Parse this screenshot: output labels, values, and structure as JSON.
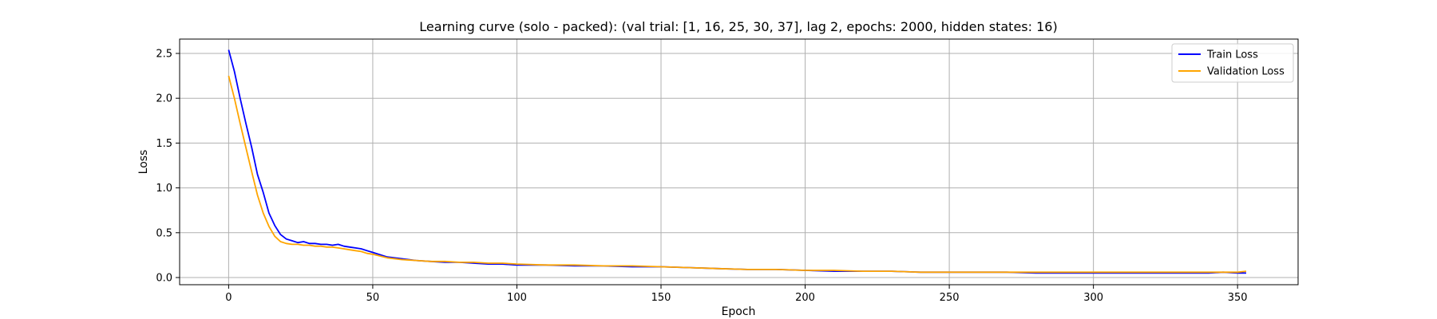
{
  "chart_data": {
    "type": "line",
    "title": "Learning curve (solo - packed): (val trial: [1, 16, 25, 30, 37], lag 2, epochs: 2000, hidden states: 16)",
    "xlabel": "Epoch",
    "ylabel": "Loss",
    "xlim": [
      -17,
      371
    ],
    "ylim": [
      -0.08,
      2.66
    ],
    "xticks": [
      0,
      50,
      100,
      150,
      200,
      250,
      300,
      350
    ],
    "yticks": [
      0.0,
      0.5,
      1.0,
      1.5,
      2.0,
      2.5
    ],
    "xtick_labels": [
      "0",
      "50",
      "100",
      "150",
      "200",
      "250",
      "300",
      "350"
    ],
    "ytick_labels": [
      "0.0",
      "0.5",
      "1.0",
      "1.5",
      "2.0",
      "2.5"
    ],
    "grid": true,
    "legend_position": "top-right",
    "series": [
      {
        "name": "Train Loss",
        "color": "#0000ff",
        "points": [
          [
            0,
            2.54
          ],
          [
            2,
            2.3
          ],
          [
            4,
            2.0
          ],
          [
            6,
            1.72
          ],
          [
            8,
            1.45
          ],
          [
            10,
            1.15
          ],
          [
            12,
            0.95
          ],
          [
            14,
            0.72
          ],
          [
            16,
            0.58
          ],
          [
            18,
            0.48
          ],
          [
            20,
            0.43
          ],
          [
            22,
            0.41
          ],
          [
            24,
            0.39
          ],
          [
            26,
            0.4
          ],
          [
            28,
            0.38
          ],
          [
            30,
            0.38
          ],
          [
            32,
            0.37
          ],
          [
            34,
            0.37
          ],
          [
            36,
            0.36
          ],
          [
            38,
            0.37
          ],
          [
            40,
            0.35
          ],
          [
            42,
            0.34
          ],
          [
            44,
            0.33
          ],
          [
            46,
            0.32
          ],
          [
            48,
            0.3
          ],
          [
            50,
            0.28
          ],
          [
            55,
            0.23
          ],
          [
            60,
            0.21
          ],
          [
            65,
            0.19
          ],
          [
            70,
            0.18
          ],
          [
            75,
            0.17
          ],
          [
            80,
            0.17
          ],
          [
            85,
            0.16
          ],
          [
            90,
            0.15
          ],
          [
            95,
            0.15
          ],
          [
            100,
            0.14
          ],
          [
            110,
            0.14
          ],
          [
            120,
            0.13
          ],
          [
            130,
            0.13
          ],
          [
            140,
            0.12
          ],
          [
            150,
            0.12
          ],
          [
            160,
            0.11
          ],
          [
            170,
            0.1
          ],
          [
            180,
            0.09
          ],
          [
            190,
            0.09
          ],
          [
            200,
            0.08
          ],
          [
            210,
            0.07
          ],
          [
            220,
            0.07
          ],
          [
            230,
            0.07
          ],
          [
            240,
            0.06
          ],
          [
            250,
            0.06
          ],
          [
            260,
            0.06
          ],
          [
            270,
            0.06
          ],
          [
            280,
            0.05
          ],
          [
            290,
            0.05
          ],
          [
            300,
            0.05
          ],
          [
            310,
            0.05
          ],
          [
            320,
            0.05
          ],
          [
            330,
            0.05
          ],
          [
            340,
            0.05
          ],
          [
            345,
            0.06
          ],
          [
            350,
            0.05
          ],
          [
            353,
            0.05
          ]
        ]
      },
      {
        "name": "Validation Loss",
        "color": "#ffa500",
        "points": [
          [
            0,
            2.25
          ],
          [
            2,
            2.0
          ],
          [
            4,
            1.72
          ],
          [
            6,
            1.45
          ],
          [
            8,
            1.18
          ],
          [
            10,
            0.92
          ],
          [
            12,
            0.72
          ],
          [
            14,
            0.57
          ],
          [
            16,
            0.46
          ],
          [
            18,
            0.4
          ],
          [
            20,
            0.38
          ],
          [
            22,
            0.37
          ],
          [
            24,
            0.37
          ],
          [
            26,
            0.36
          ],
          [
            28,
            0.36
          ],
          [
            30,
            0.35
          ],
          [
            32,
            0.35
          ],
          [
            34,
            0.34
          ],
          [
            36,
            0.34
          ],
          [
            38,
            0.33
          ],
          [
            40,
            0.32
          ],
          [
            42,
            0.31
          ],
          [
            44,
            0.3
          ],
          [
            46,
            0.29
          ],
          [
            48,
            0.27
          ],
          [
            50,
            0.26
          ],
          [
            55,
            0.22
          ],
          [
            60,
            0.2
          ],
          [
            65,
            0.19
          ],
          [
            70,
            0.18
          ],
          [
            75,
            0.18
          ],
          [
            80,
            0.17
          ],
          [
            85,
            0.17
          ],
          [
            90,
            0.16
          ],
          [
            95,
            0.16
          ],
          [
            100,
            0.15
          ],
          [
            110,
            0.14
          ],
          [
            120,
            0.14
          ],
          [
            130,
            0.13
          ],
          [
            140,
            0.13
          ],
          [
            150,
            0.12
          ],
          [
            160,
            0.11
          ],
          [
            170,
            0.1
          ],
          [
            180,
            0.09
          ],
          [
            190,
            0.09
          ],
          [
            200,
            0.08
          ],
          [
            210,
            0.08
          ],
          [
            220,
            0.07
          ],
          [
            230,
            0.07
          ],
          [
            240,
            0.06
          ],
          [
            250,
            0.06
          ],
          [
            260,
            0.06
          ],
          [
            270,
            0.06
          ],
          [
            280,
            0.06
          ],
          [
            290,
            0.06
          ],
          [
            300,
            0.06
          ],
          [
            310,
            0.06
          ],
          [
            320,
            0.06
          ],
          [
            330,
            0.06
          ],
          [
            340,
            0.06
          ],
          [
            345,
            0.06
          ],
          [
            350,
            0.06
          ],
          [
            353,
            0.07
          ]
        ]
      }
    ]
  }
}
